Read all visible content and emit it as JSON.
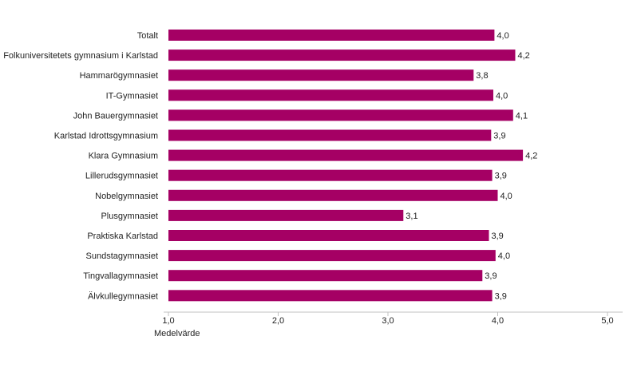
{
  "chart_data": {
    "type": "bar",
    "orientation": "horizontal",
    "categories": [
      "Totalt",
      "Folkuniversitetets gymnasium i Karlstad",
      "Hammarögymnasiet",
      "IT-Gymnasiet",
      "John Bauergymnasiet",
      "Karlstad Idrottsgymnasium",
      "Klara Gymnasium",
      "Lillerudsgymnasiet",
      "Nobelgymnasiet",
      "Plusgymnasiet",
      "Praktiska Karlstad",
      "Sundstagymnasiet",
      "Tingvallagymnasiet",
      "Älvkullegymnasiet"
    ],
    "values": [
      3.97,
      4.16,
      3.78,
      3.96,
      4.14,
      3.94,
      4.23,
      3.95,
      4.0,
      3.14,
      3.92,
      3.98,
      3.86,
      3.95
    ],
    "value_labels": [
      "4,0",
      "4,2",
      "3,8",
      "4,0",
      "4,1",
      "3,9",
      "4,2",
      "3,9",
      "4,0",
      "3,1",
      "3,9",
      "4,0",
      "3,9",
      "3,9"
    ],
    "xlim": [
      1.0,
      5.0
    ],
    "xticks": [
      {
        "value": 1.0,
        "label": "1,0"
      },
      {
        "value": 2.0,
        "label": "2,0"
      },
      {
        "value": 3.0,
        "label": "3,0"
      },
      {
        "value": 4.0,
        "label": "4,0"
      },
      {
        "value": 5.0,
        "label": "5,0"
      }
    ],
    "xlabel": "Medelvärde",
    "ylabel": "",
    "title": "",
    "grid": false,
    "legend": "none",
    "bar_color": "#a50064",
    "axis_color": "#c0c0c0"
  }
}
